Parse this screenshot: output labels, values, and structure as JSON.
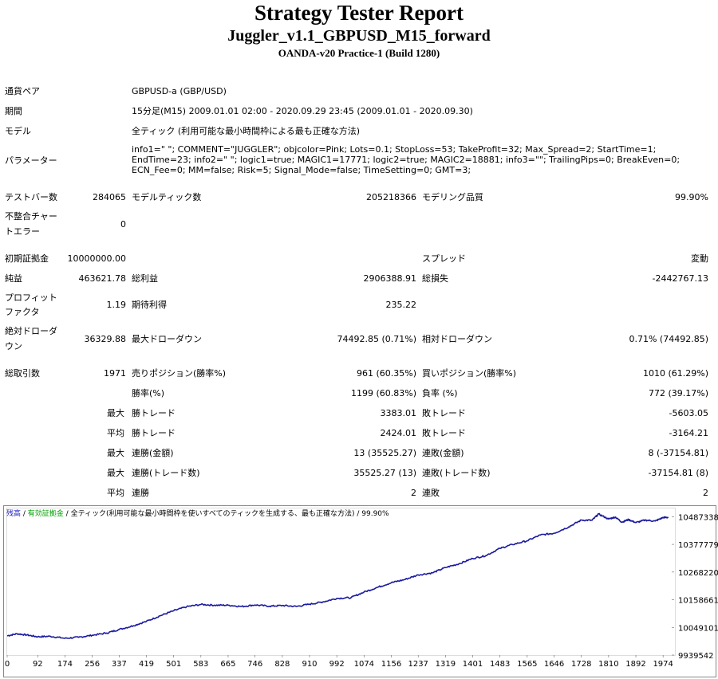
{
  "report": {
    "title": "Strategy Tester Report",
    "subtitle": "Juggler_v1.1_GBPUSD_M15_forward",
    "server": "OANDA-v20 Practice-1 (Build 1280)"
  },
  "info": {
    "symbol_label": "通貨ペア",
    "symbol_value": "GBPUSD-a (GBP/USD)",
    "period_label": "期間",
    "period_value": "15分足(M15) 2009.01.01 02:00 - 2020.09.29 23:45 (2009.01.01 - 2020.09.30)",
    "model_label": "モデル",
    "model_value": "全ティック (利用可能な最小時間枠による最も正確な方法)",
    "params_label": "パラメーター",
    "params_value": "info1=\" \"; COMMENT=\"JUGGLER\"; objcolor=Pink; Lots=0.1; StopLoss=53; TakeProfit=32; Max_Spread=2; StartTime=1; EndTime=23; info2=\" \"; logic1=true; MAGIC1=17771; logic2=true; MAGIC2=18881; info3=\"\"; TrailingPips=0; BreakEven=0; ECN_Fee=0; MM=false; Risk=5; Signal_Mode=false; TimeSetting=0; GMT=3;"
  },
  "stats": {
    "bars_label": "テストバー数",
    "bars_value": "284065",
    "ticks_label": "モデルティック数",
    "ticks_value": "205218366",
    "quality_label": "モデリング品質",
    "quality_value": "99.90%",
    "mismatch_label_1": "不整合チャー",
    "mismatch_label_2": "トエラー",
    "mismatch_value": "0",
    "deposit_label": "初期証拠金",
    "deposit_value": "10000000.00",
    "spread_label": "スプレッド",
    "spread_value": "変動",
    "net_label": "純益",
    "net_value": "463621.78",
    "gross_profit_label": "総利益",
    "gross_profit_value": "2906388.91",
    "gross_loss_label": "総損失",
    "gross_loss_value": "-2442767.13",
    "pf_label_1": "プロフィット",
    "pf_label_2": "ファクタ",
    "pf_value": "1.19",
    "expected_label": "期待利得",
    "expected_value": "235.22",
    "abs_dd_label_1": "絶対ドローダ",
    "abs_dd_label_2": "ウン",
    "abs_dd_value": "36329.88",
    "max_dd_label": "最大ドローダウン",
    "max_dd_value": "74492.85 (0.71%)",
    "rel_dd_label": "相対ドローダウン",
    "rel_dd_value": "0.71% (74492.85)",
    "trades_label": "総取引数",
    "trades_value": "1971",
    "short_label": "売りポジション(勝率%)",
    "short_value": "961 (60.35%)",
    "long_label": "買いポジション(勝率%)",
    "long_value": "1010 (61.29%)",
    "win_rate_label": "勝率(%)",
    "win_rate_value": "1199 (60.83%)",
    "loss_rate_label": "負率 (%)",
    "loss_rate_value": "772 (39.17%)",
    "max_prefix": "最大",
    "avg_prefix": "平均",
    "largest_win_label": "勝トレード",
    "largest_win_value": "3383.01",
    "largest_loss_label": "敗トレード",
    "largest_loss_value": "-5603.05",
    "avg_win_label": "勝トレード",
    "avg_win_value": "2424.01",
    "avg_loss_label": "敗トレード",
    "avg_loss_value": "-3164.21",
    "max_consec_win_label": "連勝(金額)",
    "max_consec_win_value": "13 (35525.27)",
    "max_consec_loss_label": "連敗(金額)",
    "max_consec_loss_value": "8 (-37154.81)",
    "max_consec_profit_label": "連勝(トレード数)",
    "max_consec_profit_value": "35525.27 (13)",
    "max_consec_lossamt_label": "連敗(トレード数)",
    "max_consec_lossamt_value": "-37154.81 (8)",
    "avg_consec_win_label": "連勝",
    "avg_consec_win_value": "2",
    "avg_consec_loss_label": "連敗",
    "avg_consec_loss_value": "2"
  },
  "chart_legend": {
    "balance": "残高",
    "sep1": " / ",
    "equity": "有効証拠金",
    "sep2": " / ",
    "rest": "全ティック(利用可能な最小時間枠を使いすべてのティックを生成する、最も正確な方法) / 99.90%"
  },
  "chart_data": {
    "type": "line",
    "series": [
      {
        "color": "#1a1aa0",
        "x": [
          0,
          30,
          60,
          92,
          130,
          174,
          215,
          256,
          300,
          337,
          380,
          419,
          460,
          501,
          540,
          583,
          625,
          665,
          705,
          746,
          790,
          828,
          870,
          910,
          950,
          992,
          1035,
          1074,
          1115,
          1156,
          1195,
          1237,
          1280,
          1319,
          1360,
          1401,
          1440,
          1483,
          1520,
          1565,
          1605,
          1646,
          1690,
          1728,
          1760,
          1780,
          1810,
          1830,
          1850,
          1870,
          1892,
          1920,
          1950,
          1974,
          1990
        ],
        "values": [
          10016000,
          10024000,
          10019000,
          10012000,
          10014000,
          10006000,
          10010000,
          10018000,
          10027000,
          10041000,
          10056000,
          10073000,
          10095000,
          10115000,
          10131000,
          10140000,
          10137000,
          10137000,
          10132000,
          10138000,
          10133000,
          10136000,
          10132000,
          10141000,
          10150000,
          10164000,
          10167000,
          10189000,
          10208000,
          10226000,
          10238000,
          10257000,
          10265000,
          10286000,
          10301000,
          10322000,
          10333000,
          10362000,
          10377000,
          10392000,
          10415000,
          10422000,
          10447000,
          10474000,
          10473000,
          10498000,
          10478000,
          10486000,
          10466000,
          10476000,
          10464000,
          10474000,
          10470000,
          10484000,
          10485000
        ]
      }
    ],
    "x_ticks": [
      "0",
      "92",
      "174",
      "256",
      "337",
      "419",
      "501",
      "583",
      "665",
      "746",
      "828",
      "910",
      "992",
      "1074",
      "1156",
      "1237",
      "1319",
      "1401",
      "1483",
      "1565",
      "1646",
      "1728",
      "1810",
      "1892",
      "1974"
    ],
    "y_ticks": [
      "9939542",
      "10049101",
      "10158661",
      "10268220",
      "10377779",
      "10487338"
    ],
    "xlim": [
      0,
      2000
    ],
    "ylim": [
      9939542,
      10520000
    ],
    "grid": false,
    "legend": "top-left"
  }
}
